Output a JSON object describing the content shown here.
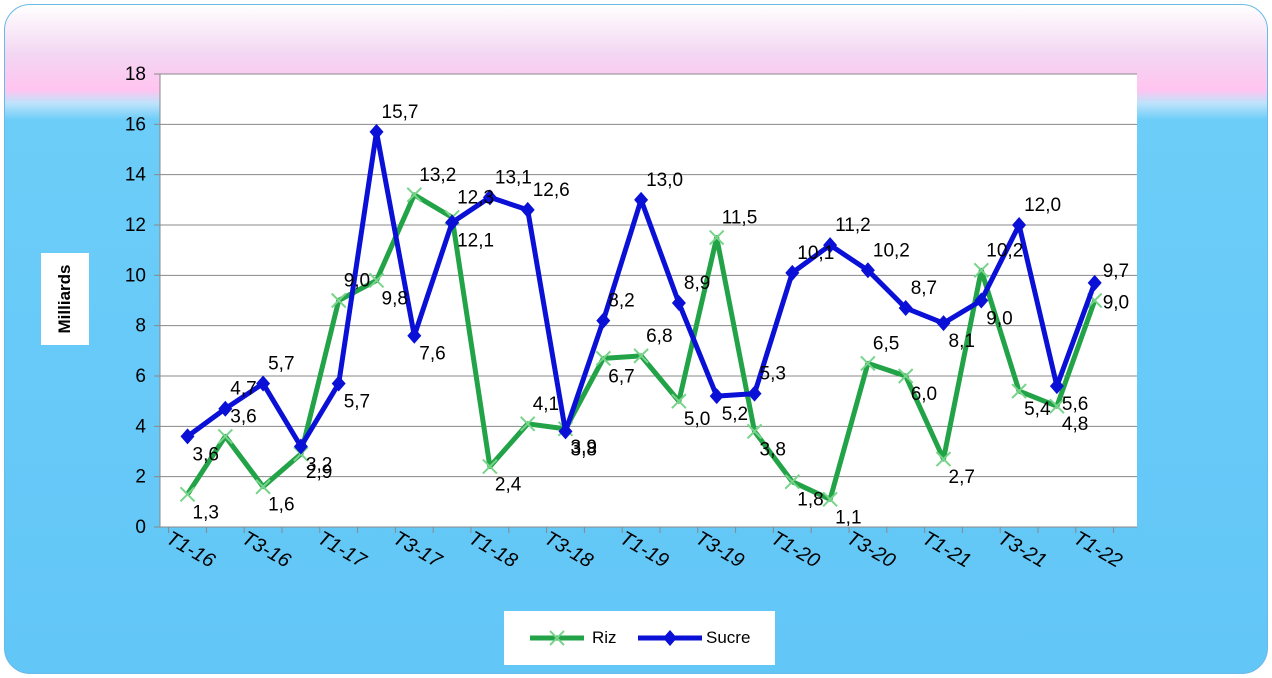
{
  "chart_data": {
    "type": "line",
    "title": "",
    "xlabel": "",
    "ylabel": "Milliards",
    "ylim": [
      0,
      18
    ],
    "yticks": [
      "0",
      "2",
      "4",
      "6",
      "8",
      "10",
      "12",
      "14",
      "16",
      "18"
    ],
    "xtick_labels": [
      "T1-16",
      "T3-16",
      "T1-17",
      "T3-17",
      "T1-18",
      "T3-18",
      "T1-19",
      "T3-19",
      "T1-20",
      "T3-20",
      "T1-21",
      "T3-21",
      "T1-22"
    ],
    "grid": true,
    "legend_position": "bottom",
    "series": [
      {
        "name": "Riz",
        "color": "#22a347",
        "marker": "x",
        "values": [
          1.3,
          3.6,
          1.6,
          2.9,
          9.0,
          9.8,
          13.2,
          12.3,
          2.4,
          4.1,
          3.9,
          6.7,
          6.8,
          5.0,
          11.5,
          3.8,
          1.8,
          1.1,
          6.5,
          6.0,
          2.7,
          10.2,
          5.4,
          4.8,
          9.0
        ],
        "labels": [
          "1,3",
          "3,6",
          "1,6",
          "2,9",
          "9,0",
          "9,8",
          "13,2",
          "12,3",
          "2,4",
          "4,1",
          "3,9",
          "6,7",
          "6,8",
          "5,0",
          "11,5",
          "3,8",
          "1,8",
          "1,1",
          "6,5",
          "6,0",
          "2,7",
          "10,2",
          "5,4",
          "4,8",
          "9,0"
        ]
      },
      {
        "name": "Sucre",
        "color": "#0a10d6",
        "marker": "diamond",
        "values": [
          3.6,
          4.7,
          5.7,
          3.2,
          5.7,
          15.7,
          7.6,
          12.1,
          13.1,
          12.6,
          3.8,
          8.2,
          13.0,
          8.9,
          5.2,
          5.3,
          10.1,
          11.2,
          10.2,
          8.7,
          8.1,
          9.0,
          12.0,
          5.6,
          9.7
        ],
        "labels": [
          "3,6",
          "4,7",
          "5,7",
          "3,2",
          "5,7",
          "15,7",
          "7,6",
          "12,1",
          "13,1",
          "12,6",
          "3,8",
          "8,2",
          "13,0",
          "8,9",
          "5,2",
          "5,3",
          "10,1",
          "11,2",
          "10,2",
          "8,7",
          "8,1",
          "9,0",
          "12,0",
          "5,6",
          "9,7"
        ]
      }
    ]
  }
}
